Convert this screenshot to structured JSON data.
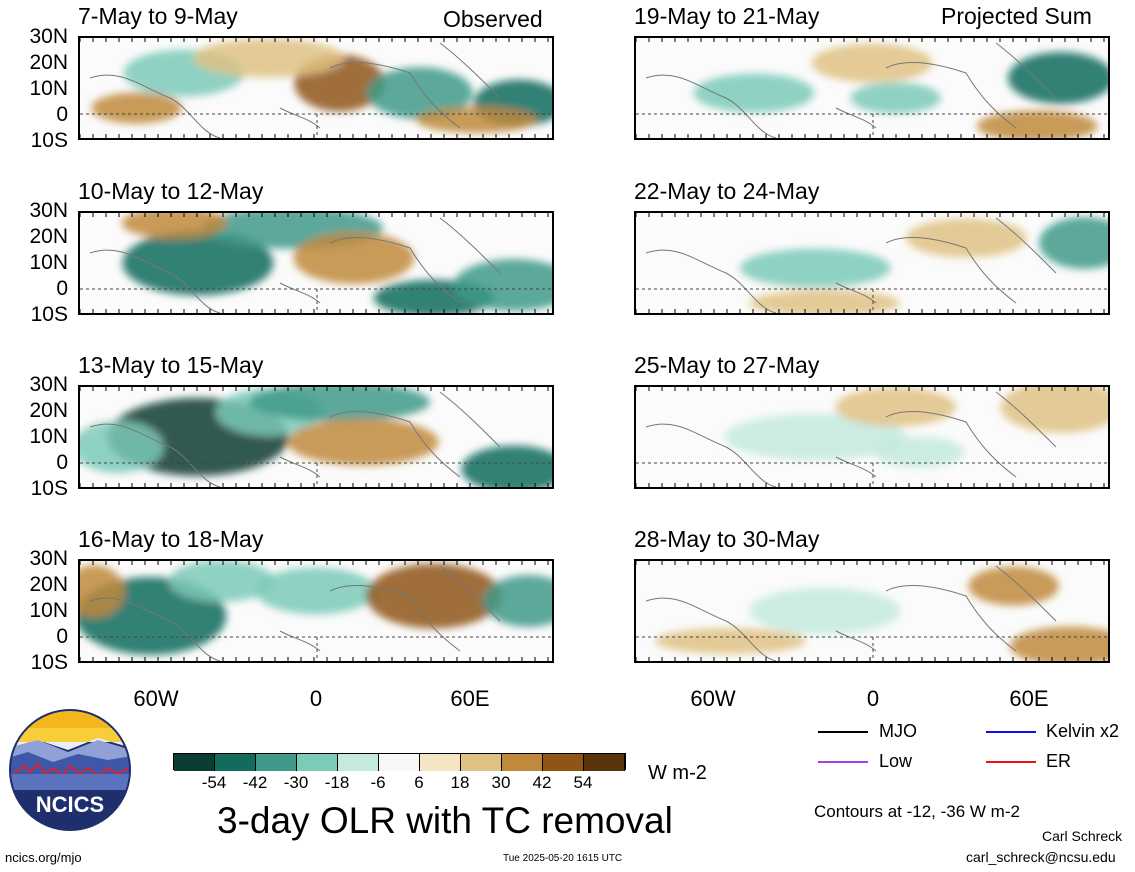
{
  "panels_left": [
    {
      "title": "7-May to 9-May"
    },
    {
      "title": "10-May to 12-May"
    },
    {
      "title": "13-May to 15-May"
    },
    {
      "title": "16-May to 18-May"
    }
  ],
  "panels_right": [
    {
      "title": "19-May to 21-May"
    },
    {
      "title": "22-May to 24-May"
    },
    {
      "title": "25-May to 27-May"
    },
    {
      "title": "28-May to 30-May"
    }
  ],
  "observed_label": "Observed",
  "projected_label": "Projected Sum",
  "lat_labels": [
    "30N",
    "20N",
    "10N",
    "0",
    "10S"
  ],
  "lon_labels": [
    "60W",
    "0",
    "60E"
  ],
  "legend": {
    "mjo": {
      "label": "MJO",
      "color": "#000000"
    },
    "kelvin": {
      "label": "Kelvin x2",
      "color": "#1010ee"
    },
    "low": {
      "label": "Low",
      "color": "#a040f0"
    },
    "er": {
      "label": "ER",
      "color": "#ee1010"
    }
  },
  "colorbar": {
    "colors": [
      "#0a3d33",
      "#136b5e",
      "#3f9a8a",
      "#7ccab8",
      "#c4eadf",
      "#f7f7f7",
      "#f4e6c2",
      "#dfc284",
      "#c08a3c",
      "#8f5515",
      "#5a340a"
    ],
    "labels": [
      "-54",
      "-42",
      "-30",
      "-18",
      "-6",
      "6",
      "18",
      "30",
      "42",
      "54"
    ],
    "unit": "W m-2"
  },
  "main_title": "3-day OLR with TC removal",
  "contours_note": "Contours at -12, -36 W m-2",
  "author": "Carl Schreck",
  "email": "carl_schreck@ncsu.edu",
  "url": "ncics.org/mjo",
  "timestamp": "Tue 2025-05-20 1615 UTC",
  "logo_text": "NCICS"
}
